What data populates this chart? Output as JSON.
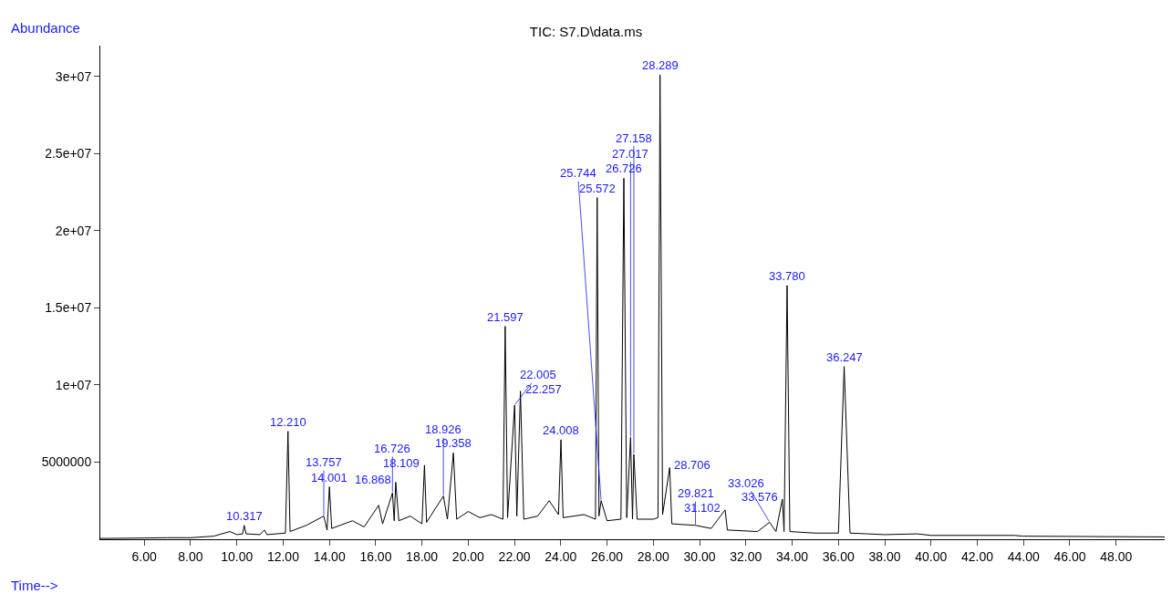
{
  "chart_data": {
    "type": "line",
    "title": "TIC: S7.D\\data.ms",
    "xlabel": "Time-->",
    "ylabel": "Abundance",
    "x": [
      4.1,
      6.0,
      7.0,
      8.0,
      9.0,
      9.7,
      10.0,
      10.25,
      10.317,
      10.4,
      11.0,
      11.188,
      11.3,
      12.1,
      12.21,
      12.3,
      13.0,
      13.757,
      13.9,
      14.001,
      14.1,
      15.0,
      15.5,
      16.128,
      16.3,
      16.726,
      16.8,
      16.868,
      17.0,
      17.5,
      18.0,
      18.109,
      18.2,
      18.926,
      19.1,
      19.358,
      19.5,
      20.0,
      20.5,
      21.0,
      21.5,
      21.597,
      21.7,
      22.005,
      22.1,
      22.257,
      22.4,
      23.0,
      23.5,
      23.9,
      24.008,
      24.1,
      25.0,
      25.5,
      25.572,
      25.65,
      25.744,
      26.0,
      26.6,
      26.726,
      26.85,
      27.017,
      27.1,
      27.158,
      27.3,
      28.0,
      28.2,
      28.289,
      28.4,
      28.706,
      28.8,
      29.821,
      30.5,
      31.102,
      31.2,
      32.5,
      33.026,
      33.3,
      33.576,
      33.65,
      33.78,
      33.9,
      35.0,
      36.0,
      36.247,
      36.5,
      38.0,
      39.4,
      40.0,
      43.6,
      44.0,
      50.1
    ],
    "series": [
      {
        "color": "#000000",
        "values": [
          50000,
          80000,
          100000,
          100000,
          200000,
          500000,
          300000,
          350000,
          900000,
          350000,
          300000,
          600000,
          300000,
          400000,
          7000000,
          500000,
          900000,
          1500000,
          600000,
          3400000,
          700000,
          1200000,
          800000,
          2200000,
          1000000,
          3000000,
          1200000,
          3700000,
          1200000,
          1500000,
          1000000,
          4800000,
          1100000,
          2800000,
          1300000,
          5600000,
          1300000,
          1800000,
          1400000,
          1600000,
          1300000,
          13800000,
          1400000,
          8700000,
          1500000,
          9600000,
          1300000,
          1500000,
          2500000,
          1600000,
          6450000,
          1400000,
          1600000,
          1300000,
          22150000,
          1500000,
          2500000,
          1200000,
          1300000,
          23400000,
          1400000,
          6600000,
          1300000,
          5500000,
          1300000,
          1300000,
          1400000,
          30100000,
          1600000,
          4650000,
          1000000,
          900000,
          700000,
          1900000,
          600000,
          500000,
          1100000,
          500000,
          2600000,
          500000,
          16450000,
          500000,
          400000,
          400000,
          11200000,
          400000,
          300000,
          350000,
          250000,
          250000,
          200000,
          150000
        ]
      }
    ],
    "xlim": [
      4.1,
      50.1
    ],
    "ylim": [
      0,
      32000000
    ],
    "xticks": [
      {
        "value": 6,
        "label": "6.00"
      },
      {
        "value": 8,
        "label": "8.00"
      },
      {
        "value": 10,
        "label": "10.00"
      },
      {
        "value": 12,
        "label": "12.00"
      },
      {
        "value": 14,
        "label": "14.00"
      },
      {
        "value": 16,
        "label": "16.00"
      },
      {
        "value": 18,
        "label": "18.00"
      },
      {
        "value": 20,
        "label": "20.00"
      },
      {
        "value": 22,
        "label": "22.00"
      },
      {
        "value": 24,
        "label": "24.00"
      },
      {
        "value": 26,
        "label": "26.00"
      },
      {
        "value": 28,
        "label": "28.00"
      },
      {
        "value": 30,
        "label": "30.00"
      },
      {
        "value": 32,
        "label": "32.00"
      },
      {
        "value": 34,
        "label": "34.00"
      },
      {
        "value": 36,
        "label": "36.00"
      },
      {
        "value": 38,
        "label": "38.00"
      },
      {
        "value": 40,
        "label": "40.00"
      },
      {
        "value": 42,
        "label": "42.00"
      },
      {
        "value": 44,
        "label": "44.00"
      },
      {
        "value": 46,
        "label": "46.00"
      },
      {
        "value": 48,
        "label": "48.00"
      }
    ],
    "yticks": [
      5000000,
      {
        "value": 10000000,
        "label": "1e+07"
      },
      {
        "value": 15000000,
        "label": "1.5e+07"
      },
      {
        "value": 20000000,
        "label": "2e+07"
      },
      {
        "value": 25000000,
        "label": "2.5e+07"
      },
      {
        "value": 30000000,
        "label": "3e+07"
      }
    ],
    "marker": "none",
    "line_style": "solid",
    "annotations": [
      {
        "text": "10.317",
        "x": 10.317,
        "y": 900000
      },
      {
        "text": "12.210",
        "x": 12.21,
        "y": 7000000
      },
      {
        "text": "13.757",
        "x": 13.757,
        "y": 1500000
      },
      {
        "text": "14.001",
        "x": 14.001,
        "y": 3400000
      },
      {
        "text": "16.726",
        "x": 16.726,
        "y": 3000000
      },
      {
        "text": "16.868",
        "x": 16.868,
        "y": 3700000
      },
      {
        "text": "18.109",
        "x": 18.109,
        "y": 4800000
      },
      {
        "text": "18.926",
        "x": 18.926,
        "y": 2800000
      },
      {
        "text": "19.358",
        "x": 19.358,
        "y": 5600000
      },
      {
        "text": "21.597",
        "x": 21.597,
        "y": 13800000
      },
      {
        "text": "22.005",
        "x": 22.005,
        "y": 8700000
      },
      {
        "text": "22.257",
        "x": 22.257,
        "y": 9600000
      },
      {
        "text": "24.008",
        "x": 24.008,
        "y": 6450000
      },
      {
        "text": "25.572",
        "x": 25.572,
        "y": 22150000
      },
      {
        "text": "25.744",
        "x": 25.744,
        "y": 2500000
      },
      {
        "text": "26.726",
        "x": 26.726,
        "y": 23400000
      },
      {
        "text": "27.017",
        "x": 27.017,
        "y": 6600000
      },
      {
        "text": "27.158",
        "x": 27.158,
        "y": 5500000
      },
      {
        "text": "28.289",
        "x": 28.289,
        "y": 30100000
      },
      {
        "text": "28.706",
        "x": 28.706,
        "y": 4650000
      },
      {
        "text": "29.821",
        "x": 29.821,
        "y": 900000
      },
      {
        "text": "31.102",
        "x": 31.102,
        "y": 1900000
      },
      {
        "text": "33.026",
        "x": 33.026,
        "y": 1100000
      },
      {
        "text": "33.576",
        "x": 33.576,
        "y": 2600000
      },
      {
        "text": "33.780",
        "x": 33.78,
        "y": 16450000
      },
      {
        "text": "36.247",
        "x": 36.247,
        "y": 11200000
      }
    ]
  }
}
